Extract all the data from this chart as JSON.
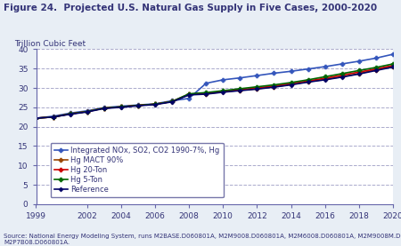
{
  "title": "Figure 24.  Projected U.S. Natural Gas Supply in Five Cases, 2000-2020",
  "ylabel": "Trillion Cubic Feet",
  "source": "Source: National Energy Modeling System, runs M2BASE.D060801A, M2M9008.D060801A, M2M6008.D060801A, M2M9008M.D060801A, and\nM2P7B08.D060801A.",
  "xlim": [
    1999,
    2020
  ],
  "ylim": [
    0,
    40
  ],
  "yticks": [
    0,
    5,
    10,
    15,
    20,
    25,
    30,
    35,
    40
  ],
  "xticks": [
    1999,
    2002,
    2004,
    2006,
    2008,
    2010,
    2012,
    2014,
    2016,
    2018,
    2020
  ],
  "series": [
    {
      "label": "Integrated NOx, SO2, CO2 1990-7%, Hg",
      "color": "#3355bb",
      "marker": "P",
      "markersize": 3.5,
      "linewidth": 1.2,
      "data": {
        "x": [
          1999,
          2000,
          2001,
          2002,
          2003,
          2004,
          2005,
          2006,
          2007,
          2008,
          2009,
          2010,
          2011,
          2012,
          2013,
          2014,
          2015,
          2016,
          2017,
          2018,
          2019,
          2020
        ],
        "y": [
          22.2,
          22.7,
          23.5,
          24.1,
          24.9,
          25.3,
          25.6,
          25.9,
          26.7,
          27.3,
          31.2,
          32.1,
          32.6,
          33.2,
          33.8,
          34.3,
          34.9,
          35.5,
          36.2,
          36.9,
          37.7,
          38.7
        ]
      }
    },
    {
      "label": "Hg MACT 90%",
      "color": "#994400",
      "marker": "P",
      "markersize": 3.5,
      "linewidth": 1.2,
      "data": {
        "x": [
          1999,
          2000,
          2001,
          2002,
          2003,
          2004,
          2005,
          2006,
          2007,
          2008,
          2009,
          2010,
          2011,
          2012,
          2013,
          2014,
          2015,
          2016,
          2017,
          2018,
          2019,
          2020
        ],
        "y": [
          22.2,
          22.5,
          23.3,
          23.9,
          24.8,
          25.1,
          25.5,
          25.8,
          26.5,
          28.3,
          28.5,
          29.0,
          29.4,
          29.8,
          30.3,
          30.9,
          31.6,
          32.2,
          32.9,
          33.7,
          34.7,
          35.5
        ]
      }
    },
    {
      "label": "Hg 20-Ton",
      "color": "#cc0000",
      "marker": "P",
      "markersize": 3.5,
      "linewidth": 1.2,
      "data": {
        "x": [
          1999,
          2000,
          2001,
          2002,
          2003,
          2004,
          2005,
          2006,
          2007,
          2008,
          2009,
          2010,
          2011,
          2012,
          2013,
          2014,
          2015,
          2016,
          2017,
          2018,
          2019,
          2020
        ],
        "y": [
          22.2,
          22.5,
          23.3,
          23.9,
          24.8,
          25.1,
          25.5,
          25.8,
          26.5,
          28.4,
          28.6,
          29.1,
          29.5,
          30.0,
          30.5,
          31.1,
          31.8,
          32.5,
          33.3,
          34.1,
          34.9,
          35.8
        ]
      }
    },
    {
      "label": "Hg 5-Ton",
      "color": "#006600",
      "marker": "P",
      "markersize": 3.5,
      "linewidth": 1.2,
      "data": {
        "x": [
          1999,
          2000,
          2001,
          2002,
          2003,
          2004,
          2005,
          2006,
          2007,
          2008,
          2009,
          2010,
          2011,
          2012,
          2013,
          2014,
          2015,
          2016,
          2017,
          2018,
          2019,
          2020
        ],
        "y": [
          22.2,
          22.5,
          23.3,
          23.9,
          24.8,
          25.1,
          25.5,
          25.8,
          26.5,
          28.5,
          28.8,
          29.3,
          29.8,
          30.3,
          30.8,
          31.4,
          32.1,
          32.9,
          33.7,
          34.5,
          35.3,
          36.2
        ]
      }
    },
    {
      "label": "Reference",
      "color": "#000066",
      "marker": "D",
      "markersize": 2.5,
      "linewidth": 1.2,
      "data": {
        "x": [
          1999,
          2000,
          2001,
          2002,
          2003,
          2004,
          2005,
          2006,
          2007,
          2008,
          2009,
          2010,
          2011,
          2012,
          2013,
          2014,
          2015,
          2016,
          2017,
          2018,
          2019,
          2020
        ],
        "y": [
          22.2,
          22.5,
          23.2,
          23.8,
          24.7,
          25.0,
          25.4,
          25.7,
          26.4,
          28.2,
          28.4,
          28.9,
          29.3,
          29.7,
          30.2,
          30.8,
          31.5,
          32.1,
          32.8,
          33.6,
          34.5,
          35.4
        ]
      }
    }
  ],
  "grid_color": "#aaaacc",
  "grid_linestyle": "--",
  "grid_linewidth": 0.7,
  "title_fontsize": 7.5,
  "ylabel_fontsize": 6.5,
  "tick_labelsize": 6.5,
  "source_fontsize": 5.0,
  "fig_facecolor": "#e8eef5",
  "ax_facecolor": "#ffffff",
  "title_color": "#333377",
  "tick_color": "#333377",
  "spine_color": "#6666aa",
  "legend_fontsize": 6.0,
  "legend_edgecolor": "#7777aa"
}
